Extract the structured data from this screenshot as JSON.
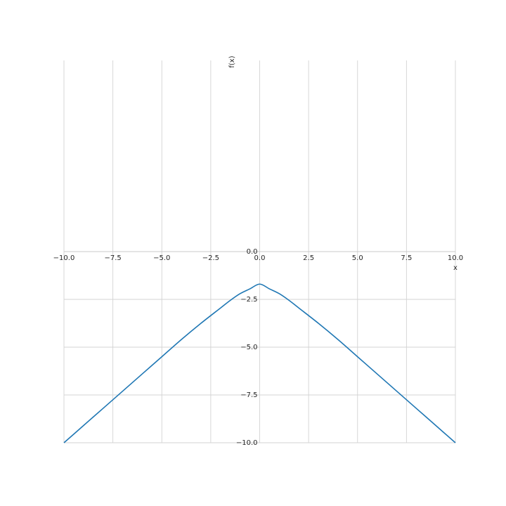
{
  "chart_data": {
    "type": "line",
    "title": "",
    "xlabel": "x",
    "ylabel": "f(x)",
    "xlim": [
      -10,
      10
    ],
    "ylim": [
      -10,
      0
    ],
    "grid": true,
    "x_ticks": [
      -10,
      -7.5,
      -5,
      -2.5,
      0,
      2.5,
      5,
      7.5,
      10
    ],
    "y_ticks": [
      -10,
      -7.5,
      -5,
      -2.5,
      0
    ],
    "x_tick_labels": [
      "−10.0",
      "−7.5",
      "−5.0",
      "−2.5",
      "0.0",
      "2.5",
      "5.0",
      "7.5",
      "10.0"
    ],
    "y_tick_labels": [
      "−10.0",
      "−7.5",
      "−5.0",
      "−2.5",
      "0.0"
    ],
    "series": [
      {
        "name": "f(x)",
        "color": "#1f77b4",
        "x": [
          -10,
          -9,
          -8,
          -7,
          -6,
          -5,
          -4,
          -3,
          -2,
          -1.5,
          -1,
          -0.5,
          0,
          0.5,
          1,
          1.5,
          2,
          3,
          4,
          5,
          6,
          7,
          8,
          9,
          10
        ],
        "y": [
          -10.0,
          -9.1,
          -8.2,
          -7.3,
          -6.4,
          -5.5,
          -4.6,
          -3.75,
          -2.95,
          -2.55,
          -2.2,
          -1.95,
          -1.7,
          -1.95,
          -2.2,
          -2.55,
          -2.95,
          -3.75,
          -4.6,
          -5.5,
          -6.4,
          -7.3,
          -8.2,
          -9.1,
          -10.0
        ]
      }
    ]
  }
}
